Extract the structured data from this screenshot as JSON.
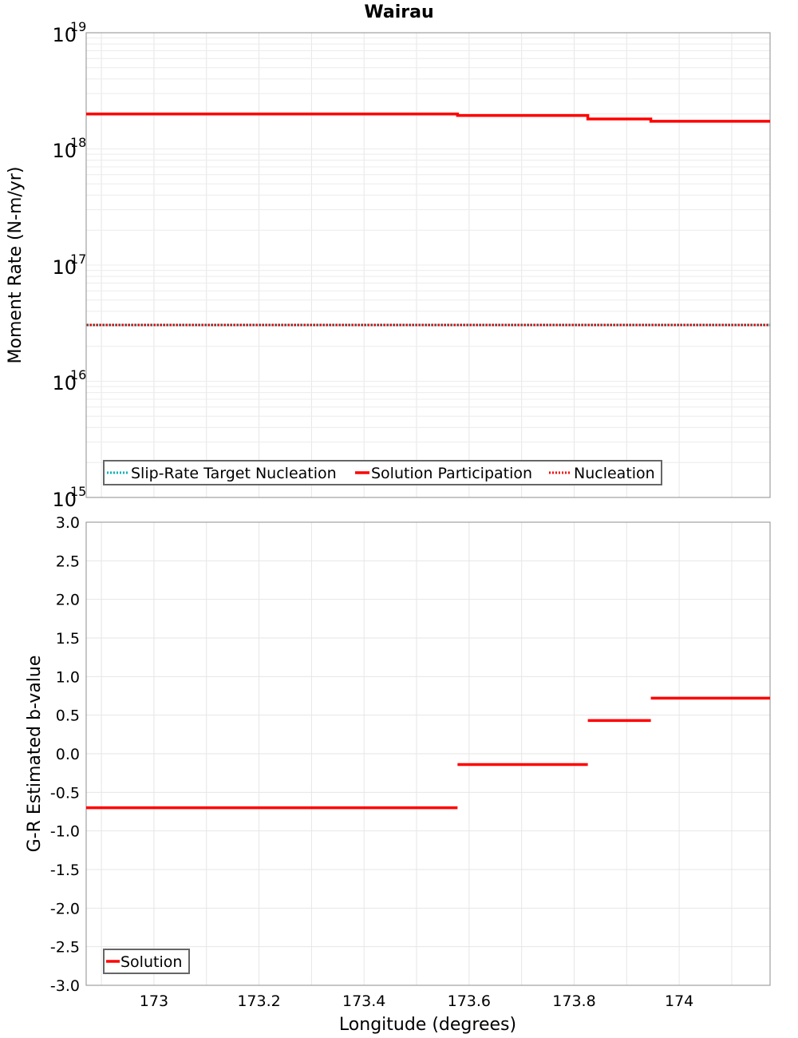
{
  "title": "Wairau",
  "colors": {
    "solution": "#ff0000",
    "nucleation": "#ff0000",
    "target": "#00b4b4",
    "grid": "#e6e6e6",
    "frame": "#a0a0a0"
  },
  "chart_data": [
    {
      "type": "line",
      "title": "Wairau",
      "xlabel": "Longitude (degrees)",
      "ylabel": "Moment Rate (N-m/yr)",
      "yscale": "log",
      "ylim": [
        1000000000000000.0,
        1e+19
      ],
      "xlim": [
        172.871,
        174.173
      ],
      "ytick_labels": [
        "10^15",
        "10^16",
        "10^17",
        "10^18",
        "10^19"
      ],
      "grid": true,
      "legend_position": "lower-left",
      "legend": [
        "Slip-Rate Target Nucleation",
        "Solution Participation",
        "Nucleation"
      ],
      "series": [
        {
          "name": "Slip-Rate Target Nucleation",
          "style": "dotted",
          "color": "#00b4b4",
          "x": [
            172.871,
            174.173
          ],
          "y": [
            3e+16,
            3e+16
          ]
        },
        {
          "name": "Solution Participation",
          "style": "solid-step",
          "color": "#ff0000",
          "segments": [
            {
              "x0": 172.871,
              "x1": 173.578,
              "y": 2e+18
            },
            {
              "x0": 173.578,
              "x1": 173.826,
              "y": 1.94e+18
            },
            {
              "x0": 173.826,
              "x1": 173.946,
              "y": 1.81e+18
            },
            {
              "x0": 173.946,
              "x1": 174.173,
              "y": 1.73e+18
            }
          ]
        },
        {
          "name": "Nucleation",
          "style": "dotted",
          "color": "#ff0000",
          "x": [
            172.871,
            174.173
          ],
          "y": [
            3e+16,
            3e+16
          ]
        }
      ]
    },
    {
      "type": "line",
      "xlabel": "Longitude (degrees)",
      "ylabel": "G-R Estimated b-value",
      "ylim": [
        -3.0,
        3.0
      ],
      "xlim": [
        172.871,
        174.173
      ],
      "yticks": [
        "3.0",
        "2.5",
        "2.0",
        "1.5",
        "1.0",
        "0.5",
        "0.0",
        "-0.5",
        "-1.0",
        "-1.5",
        "-2.0",
        "-2.5",
        "-3.0"
      ],
      "xticks": [
        "173",
        "173.2",
        "173.4",
        "173.6",
        "173.8",
        "174"
      ],
      "grid": true,
      "legend_position": "lower-left",
      "legend": [
        "Solution"
      ],
      "series": [
        {
          "name": "Solution",
          "style": "solid-step",
          "color": "#ff0000",
          "segments": [
            {
              "x0": 172.871,
              "x1": 173.578,
              "y": -0.7
            },
            {
              "x0": 173.578,
              "x1": 173.826,
              "y": -0.14
            },
            {
              "x0": 173.826,
              "x1": 173.946,
              "y": 0.43
            },
            {
              "x0": 173.946,
              "x1": 174.173,
              "y": 0.72
            }
          ]
        }
      ]
    }
  ],
  "top": {
    "ylabel": "Moment Rate (N-m/yr)",
    "yticks": [
      {
        "base": "10",
        "exp": "19"
      },
      {
        "base": "10",
        "exp": "18"
      },
      {
        "base": "10",
        "exp": "17"
      },
      {
        "base": "10",
        "exp": "16"
      },
      {
        "base": "10",
        "exp": "15"
      }
    ],
    "legend": [
      "Slip-Rate Target Nucleation",
      "Solution Participation",
      "Nucleation"
    ]
  },
  "bottom": {
    "ylabel": "G-R Estimated b-value",
    "yticks": [
      "3.0",
      "2.5",
      "2.0",
      "1.5",
      "1.0",
      "0.5",
      "0.0",
      "-0.5",
      "-1.0",
      "-1.5",
      "-2.0",
      "-2.5",
      "-3.0"
    ],
    "xticks": [
      "173",
      "173.2",
      "173.4",
      "173.6",
      "173.8",
      "174"
    ],
    "xlabel": "Longitude (degrees)",
    "legend": [
      "Solution"
    ]
  }
}
